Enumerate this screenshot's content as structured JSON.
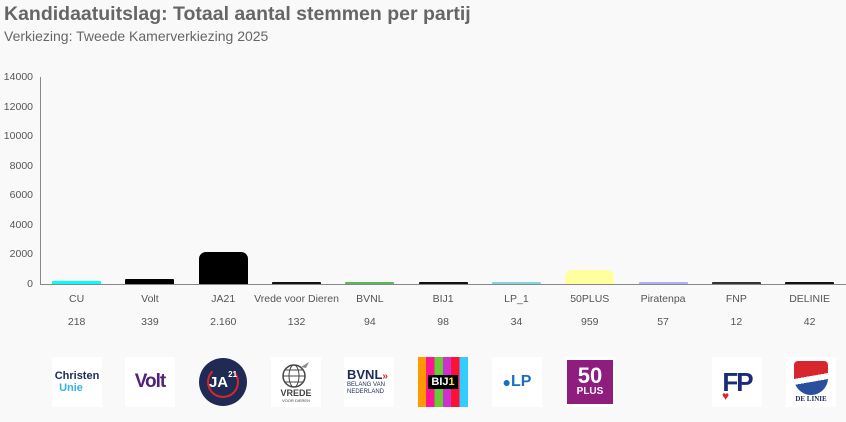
{
  "header": {
    "title": "Kandidaatuitslag: Totaal aantal stemmen per partij",
    "subtitle": "Verkiezing: Tweede Kamerverkiezing 2025"
  },
  "chart_data": {
    "type": "bar",
    "title": "Kandidaatuitslag: Totaal aantal stemmen per partij",
    "subtitle": "Verkiezing: Tweede Kamerverkiezing 2025",
    "xlabel": "",
    "ylabel": "",
    "ylim": [
      0,
      14000
    ],
    "yticks": [
      0,
      2000,
      4000,
      6000,
      8000,
      10000,
      12000,
      14000
    ],
    "grid": false,
    "legend": "none",
    "categories": [
      "CU",
      "Volt",
      "JA21",
      "Vrede voor Dieren",
      "BVNL",
      "BIJ1",
      "LP_1",
      "50PLUS",
      "Piratenpa",
      "FNP",
      "DELINIE"
    ],
    "values": [
      218,
      339,
      2160,
      132,
      94,
      98,
      34,
      959,
      57,
      12,
      42
    ],
    "value_labels": [
      "218",
      "339",
      "2.160",
      "132",
      "94",
      "98",
      "34",
      "959",
      "57",
      "12",
      "42"
    ],
    "colors": [
      "#00ffff",
      "#000000",
      "#000000",
      "#111111",
      "#5cb85c",
      "#111111",
      "#7fd8e0",
      "#ffffa0",
      "#b0b0f0",
      "#333333",
      "#111111"
    ]
  },
  "logos": [
    {
      "party": "CU",
      "icon": "christenunie-logo",
      "line1": "Christen",
      "line2": "Unie"
    },
    {
      "party": "Volt",
      "icon": "volt-logo",
      "text": "Volt"
    },
    {
      "party": "JA21",
      "icon": "ja21-logo",
      "text": "JA",
      "sup": "21"
    },
    {
      "party": "Vrede voor Dieren",
      "icon": "vrede-voor-dieren-logo",
      "line1": "VREDE",
      "line2": "VOOR DIEREN"
    },
    {
      "party": "BVNL",
      "icon": "bvnl-logo",
      "line1": "BVNL",
      "line2": "BELANG VAN",
      "line3": "NEDERLAND"
    },
    {
      "party": "BIJ1",
      "icon": "bij1-logo",
      "text": "BIJ",
      "num": "1"
    },
    {
      "party": "LP_1",
      "icon": "lp-logo",
      "text": "LP"
    },
    {
      "party": "50PLUS",
      "icon": "50plus-logo",
      "line1": "50",
      "line2": "PLUS"
    },
    {
      "party": "FNP",
      "icon": "fnp-logo",
      "text": "FP"
    },
    {
      "party": "DELINIE",
      "icon": "de-linie-logo",
      "text": "DE LINIE"
    }
  ]
}
